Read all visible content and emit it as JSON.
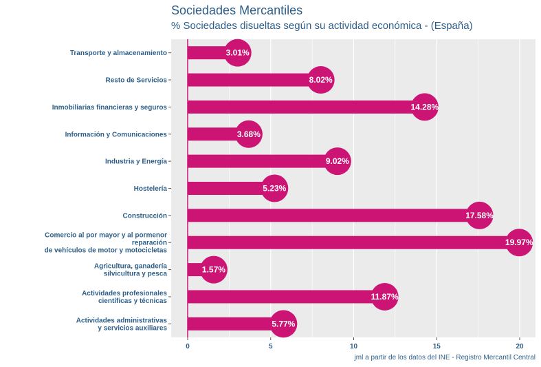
{
  "title": "Sociedades Mercantiles",
  "subtitle": "% Sociedades disueltas según su actividad económica - (España)",
  "caption": "jml a partir de los datos del INE - Registro Mercantil Central",
  "colors": {
    "bar": "#cc1474",
    "panel": "#ebebeb",
    "grid": "#ffffff",
    "text": "#2d5f8a"
  },
  "chart_data": {
    "type": "bar",
    "orientation": "horizontal",
    "title": "Sociedades Mercantiles",
    "subtitle": "% Sociedades disueltas según su actividad económica - (España)",
    "categories": [
      "Transporte y almacenamiento",
      "Resto de Servicios",
      "Inmobiliarias financieras y seguros",
      "Información y Comunicaciones",
      "Industria y Energía",
      "Hostelería",
      "Construcción",
      "Comercio al por mayor y al pormenor\nreparación\nde vehículos de motor y motocicletas",
      "Agricultura, ganadería\nsilvicultura y pesca",
      "Actividades profesionales\ncientíficas y técnicas",
      "Actividades administrativas\ny servicios auxiliares"
    ],
    "values": [
      3.01,
      8.02,
      14.28,
      3.68,
      9.02,
      5.23,
      17.58,
      19.97,
      1.57,
      11.87,
      5.77
    ],
    "value_labels": [
      "3.01%",
      "8.02%",
      "14.28%",
      "3.68%",
      "9.02%",
      "5.23%",
      "17.58%",
      "19.97%",
      "1.57%",
      "11.87%",
      "5.77%"
    ],
    "xlim": [
      0,
      20.8
    ],
    "xticks": [
      0,
      5,
      10,
      15,
      20
    ],
    "xtick_labels": [
      "0",
      "5",
      "10",
      "15",
      "20"
    ],
    "grid": true
  }
}
